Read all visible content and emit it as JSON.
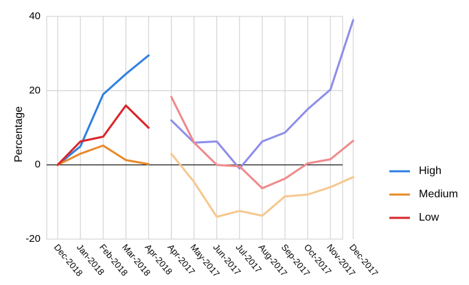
{
  "chart_data": {
    "type": "line",
    "ylabel": "Percentage",
    "xlabel": "",
    "ylim": [
      -20,
      40
    ],
    "y_ticks": [
      "40",
      "20",
      "0",
      "-20"
    ],
    "y_tick_values": [
      40,
      20,
      0,
      -20
    ],
    "categories": [
      "Dec-2018",
      "Jan-2018",
      "Feb-2018",
      "Mar-2018",
      "Apr-2018",
      "Apr-2017",
      "May-2017",
      "Jun-2017",
      "Jul-2017",
      "Aug-2017",
      "Sep-2017",
      "Oct-2017",
      "Nov-2017",
      "Dec-2017"
    ],
    "grid": "vertical",
    "legend_position": "right",
    "series": [
      {
        "name": "High",
        "color": "#2f80e0",
        "segment": "2018",
        "values": [
          0,
          5,
          19,
          24.5,
          29.5,
          null,
          null,
          null,
          null,
          null,
          null,
          null,
          null,
          null
        ]
      },
      {
        "name": "Medium",
        "color": "#e8892a",
        "segment": "2018",
        "values": [
          0,
          3,
          5.2,
          1.3,
          0.2,
          null,
          null,
          null,
          null,
          null,
          null,
          null,
          null,
          null
        ]
      },
      {
        "name": "Low",
        "color": "#d9262a",
        "segment": "2018",
        "values": [
          0,
          6.3,
          7.6,
          16,
          10,
          null,
          null,
          null,
          null,
          null,
          null,
          null,
          null,
          null
        ]
      },
      {
        "color": "#8e8eea",
        "segment": "2017",
        "values": [
          null,
          null,
          null,
          null,
          null,
          12,
          6,
          6.3,
          -1,
          6.3,
          8.7,
          15,
          20.3,
          39
        ]
      },
      {
        "color": "#f5c890",
        "segment": "2017",
        "values": [
          null,
          null,
          null,
          null,
          null,
          3,
          -4.6,
          -14,
          -12.4,
          -13.7,
          -8.5,
          -8,
          -6,
          -3.3
        ]
      },
      {
        "color": "#ef8a8c",
        "segment": "2017",
        "values": [
          null,
          null,
          null,
          null,
          null,
          18.3,
          6,
          0,
          -0.4,
          -6.3,
          -3.7,
          0.4,
          1.5,
          6.5
        ]
      }
    ]
  }
}
